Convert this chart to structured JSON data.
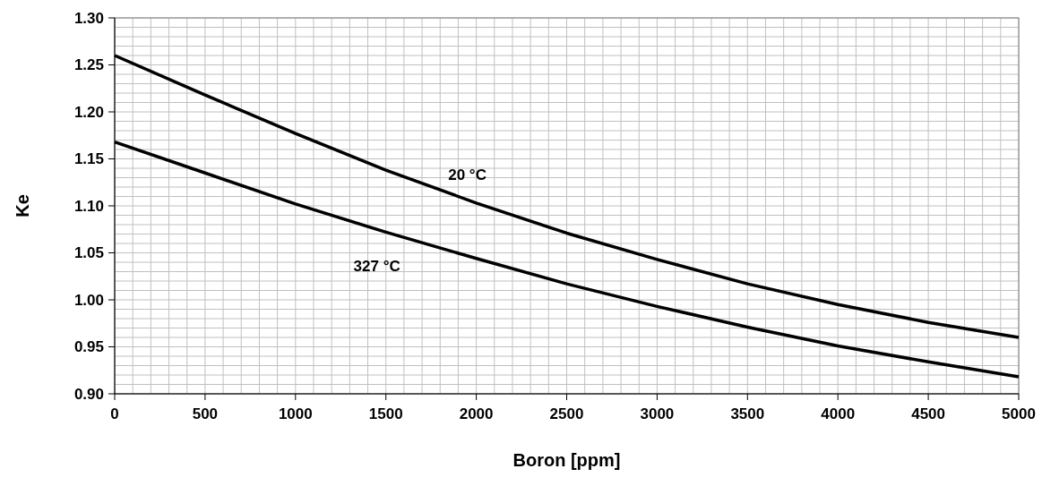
{
  "chart_data": {
    "type": "line",
    "xlabel": "Boron [ppm]",
    "ylabel": "Ke",
    "xlim": [
      0,
      5000
    ],
    "ylim": [
      0.9,
      1.3
    ],
    "xticks": [
      0,
      {
        "value": 100,
        "label": null
      },
      {
        "value": 200,
        "label": null
      },
      {
        "value": 300,
        "label": null
      },
      {
        "value": 400,
        "label": null
      },
      500,
      {
        "value": 600,
        "label": null
      },
      {
        "value": 700,
        "label": null
      },
      {
        "value": 800,
        "label": null
      },
      {
        "value": 900,
        "label": null
      },
      1000,
      {
        "value": 1100,
        "label": null
      },
      {
        "value": 1200,
        "label": null
      },
      {
        "value": 1300,
        "label": null
      },
      {
        "value": 1400,
        "label": null
      },
      1500,
      {
        "value": 1600,
        "label": null
      },
      {
        "value": 1700,
        "label": null
      },
      {
        "value": 1800,
        "label": null
      },
      {
        "value": 1900,
        "label": null
      },
      2000,
      {
        "value": 2100,
        "label": null
      },
      {
        "value": 2200,
        "label": null
      },
      {
        "value": 2300,
        "label": null
      },
      {
        "value": 2400,
        "label": null
      },
      2500,
      {
        "value": 2600,
        "label": null
      },
      {
        "value": 2700,
        "label": null
      },
      {
        "value": 2800,
        "label": null
      },
      {
        "value": 2900,
        "label": null
      },
      3000,
      {
        "value": 3100,
        "label": null
      },
      {
        "value": 3200,
        "label": null
      },
      {
        "value": 3300,
        "label": null
      },
      {
        "value": 3400,
        "label": null
      },
      3500,
      {
        "value": 3600,
        "label": null
      },
      {
        "value": 3700,
        "label": null
      },
      {
        "value": 3800,
        "label": null
      },
      {
        "value": 3900,
        "label": null
      },
      4000,
      {
        "value": 4100,
        "label": null
      },
      {
        "value": 4200,
        "label": null
      },
      {
        "value": 4300,
        "label": null
      },
      {
        "value": 4400,
        "label": null
      },
      4500,
      {
        "value": 4600,
        "label": null
      },
      {
        "value": 4700,
        "label": null
      },
      {
        "value": 4800,
        "label": null
      },
      {
        "value": 4900,
        "label": null
      },
      5000
    ],
    "yticks": [
      {
        "value": 0.9,
        "label": "0.90"
      },
      {
        "value": 0.91,
        "label": null
      },
      {
        "value": 0.92,
        "label": null
      },
      {
        "value": 0.93,
        "label": null
      },
      {
        "value": 0.94,
        "label": null
      },
      {
        "value": 0.95,
        "label": "0.95"
      },
      {
        "value": 0.96,
        "label": null
      },
      {
        "value": 0.97,
        "label": null
      },
      {
        "value": 0.98,
        "label": null
      },
      {
        "value": 0.99,
        "label": null
      },
      {
        "value": 1.0,
        "label": "1.00"
      },
      {
        "value": 1.01,
        "label": null
      },
      {
        "value": 1.02,
        "label": null
      },
      {
        "value": 1.03,
        "label": null
      },
      {
        "value": 1.04,
        "label": null
      },
      {
        "value": 1.05,
        "label": "1.05"
      },
      {
        "value": 1.06,
        "label": null
      },
      {
        "value": 1.07,
        "label": null
      },
      {
        "value": 1.08,
        "label": null
      },
      {
        "value": 1.09,
        "label": null
      },
      {
        "value": 1.1,
        "label": "1.10"
      },
      {
        "value": 1.11,
        "label": null
      },
      {
        "value": 1.12,
        "label": null
      },
      {
        "value": 1.13,
        "label": null
      },
      {
        "value": 1.14,
        "label": null
      },
      {
        "value": 1.15,
        "label": "1.15"
      },
      {
        "value": 1.16,
        "label": null
      },
      {
        "value": 1.17,
        "label": null
      },
      {
        "value": 1.18,
        "label": null
      },
      {
        "value": 1.19,
        "label": null
      },
      {
        "value": 1.2,
        "label": "1.20"
      },
      {
        "value": 1.21,
        "label": null
      },
      {
        "value": 1.22,
        "label": null
      },
      {
        "value": 1.23,
        "label": null
      },
      {
        "value": 1.24,
        "label": null
      },
      {
        "value": 1.25,
        "label": "1.25"
      },
      {
        "value": 1.26,
        "label": null
      },
      {
        "value": 1.27,
        "label": null
      },
      {
        "value": 1.28,
        "label": null
      },
      {
        "value": 1.29,
        "label": null
      },
      {
        "value": 1.3,
        "label": "1.30"
      }
    ],
    "grid": true,
    "line_style": "solid",
    "x": [
      0,
      500,
      1000,
      1500,
      2000,
      2500,
      3000,
      3500,
      4000,
      4500,
      5000
    ],
    "series": [
      {
        "name": "20 °C",
        "color": "#000000",
        "values": [
          1.26,
          1.218,
          1.177,
          1.138,
          1.103,
          1.071,
          1.043,
          1.017,
          0.995,
          0.976,
          0.96
        ]
      },
      {
        "name": "327 °C",
        "color": "#000000",
        "values": [
          1.168,
          1.135,
          1.102,
          1.072,
          1.044,
          1.017,
          0.993,
          0.971,
          0.951,
          0.934,
          0.918
        ]
      }
    ]
  }
}
